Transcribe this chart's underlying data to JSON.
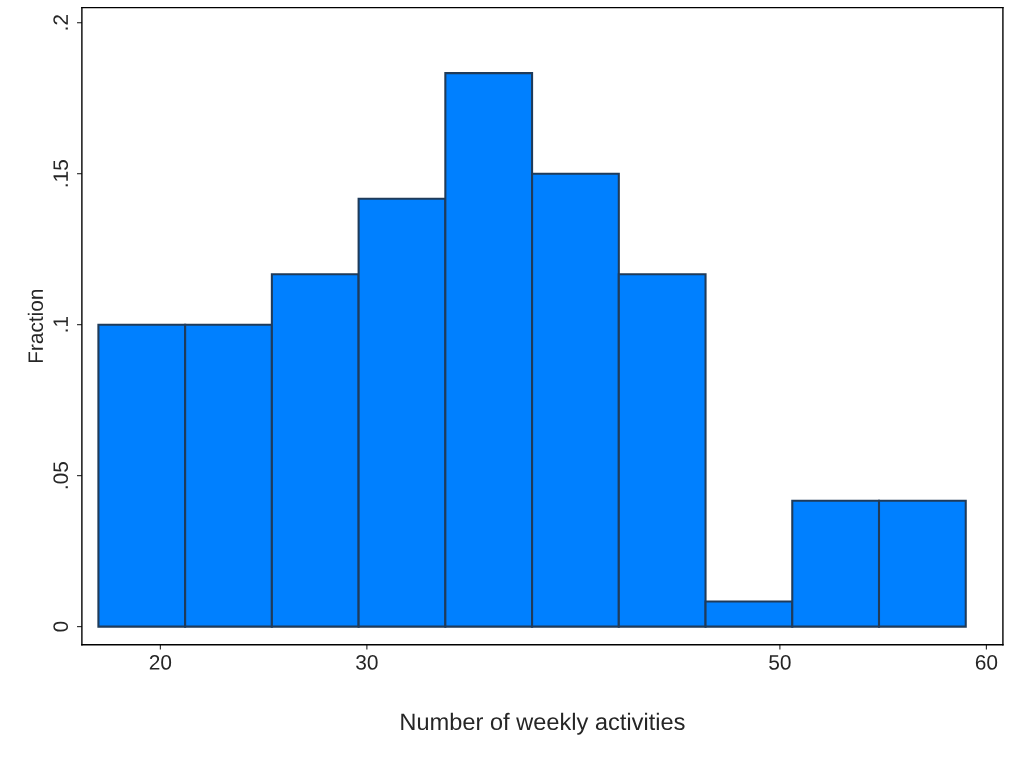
{
  "chart_data": {
    "type": "histogram",
    "xlabel": "Number of weekly activities",
    "ylabel": "Fraction",
    "bins": [
      17,
      21.2,
      25.4,
      29.6,
      33.8,
      38,
      42.2,
      46.4,
      50.6,
      54.8,
      59
    ],
    "values": [
      0.1,
      0.1,
      0.1167,
      0.1417,
      0.1833,
      0.15,
      0.1167,
      0.0083,
      0.0417,
      0.0417
    ],
    "color": "#0080ff",
    "xlim": [
      16.2,
      60.8
    ],
    "xticks": [
      20,
      30,
      50,
      60
    ],
    "ylim": [
      -0.006,
      0.205
    ],
    "yticks": [
      {
        "value": 0,
        "label": "0"
      },
      {
        "value": 0.05,
        "label": ".05"
      },
      {
        "value": 0.1,
        "label": ".1"
      },
      {
        "value": 0.15,
        "label": ".15"
      },
      {
        "value": 0.2,
        "label": ".2"
      }
    ],
    "grid": false
  }
}
